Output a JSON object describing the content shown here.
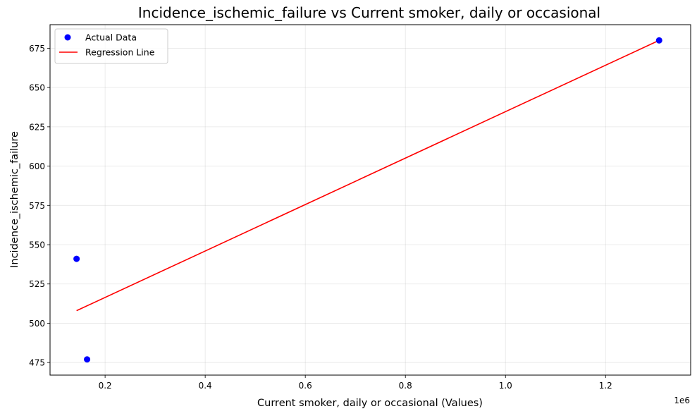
{
  "chart_data": {
    "type": "scatter",
    "title": "Incidence_ischemic_failure vs Current smoker, daily or occasional",
    "xlabel": "Current smoker, daily or occasional (Values)",
    "ylabel": "Incidence_ischemic_failure",
    "x_offset_label": "1e6",
    "xlim": [
      90000,
      1370000
    ],
    "ylim": [
      467,
      690
    ],
    "x_ticks": [
      200000,
      400000,
      600000,
      800000,
      1000000,
      1200000
    ],
    "x_tick_labels": [
      "0.2",
      "0.4",
      "0.6",
      "0.8",
      "1.0",
      "1.2"
    ],
    "y_ticks": [
      475,
      500,
      525,
      550,
      575,
      600,
      625,
      650,
      675
    ],
    "y_tick_labels": [
      "475",
      "500",
      "525",
      "550",
      "575",
      "600",
      "625",
      "650",
      "675"
    ],
    "grid": true,
    "legend_position": "top-left",
    "series": [
      {
        "name": "Actual Data",
        "kind": "scatter",
        "color": "#0000ff",
        "points": [
          {
            "x": 143000,
            "y": 541
          },
          {
            "x": 164000,
            "y": 477
          },
          {
            "x": 1307000,
            "y": 680
          }
        ]
      },
      {
        "name": "Regression Line",
        "kind": "line",
        "color": "#ff0000",
        "points": [
          {
            "x": 143000,
            "y": 508
          },
          {
            "x": 1307000,
            "y": 680
          }
        ]
      }
    ]
  }
}
